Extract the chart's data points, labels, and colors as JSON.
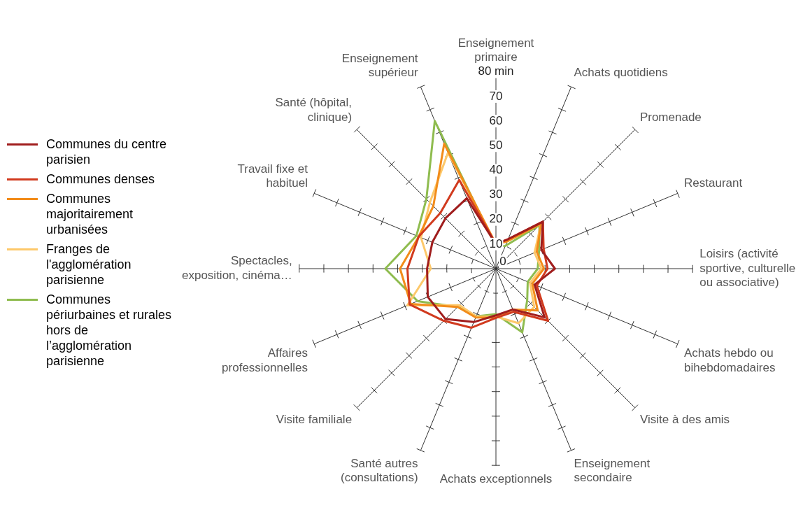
{
  "chart_data": {
    "type": "radar",
    "marker": "none",
    "legend": "left",
    "grid": true,
    "categories": [
      "Enseignement primaire",
      "Achats quotidiens",
      "Promenade",
      "Restaurant",
      "Loisirs (activité sportive, culturelle ou associative)",
      "Achats hebdo ou bihebdomadaires",
      "Visite à des amis",
      "Enseignement secondaire",
      "Achats exceptionnels",
      "Santé autres (consultations)",
      "Visite familiale",
      "Affaires professionnelles",
      "Spectacles, exposition, cinéma…",
      "Travail fixe et habituel",
      "Santé (hôpital, clinique)",
      "Enseignement supérieur"
    ],
    "ylim": [
      0,
      80
    ],
    "yticks": [
      0,
      10,
      20,
      30,
      40,
      50,
      60,
      70,
      {
        "value": 80,
        "label": "80 min"
      }
    ],
    "series": [
      {
        "name": "Communes du centre parisien",
        "color": "#a01d1d",
        "values": [
          10,
          13,
          27,
          20,
          24,
          17,
          28,
          18,
          19,
          23.5,
          29,
          30,
          28,
          28,
          29,
          31
        ]
      },
      {
        "name": "Communes denses",
        "color": "#d13a1e",
        "values": [
          10,
          13,
          27,
          21,
          21,
          18,
          30,
          19,
          20,
          26,
          30,
          38,
          36,
          34,
          32,
          39
        ]
      },
      {
        "name": "Communes majoritairement urbanisées",
        "color": "#f28c1a",
        "values": [
          10,
          12,
          26,
          18,
          19.5,
          16,
          24,
          18,
          20,
          21.5,
          22,
          37.5,
          39,
          34,
          36,
          55
        ]
      },
      {
        "name": "Franges de l'agglomération parisienne",
        "color": "#fdc86a",
        "values": [
          10,
          12,
          26,
          17,
          18.5,
          15,
          22,
          24,
          19.5,
          21,
          21,
          39,
          26.5,
          33,
          38,
          51
        ]
      },
      {
        "name": "Communes périurbaines et rurales hors de l’agglomération parisienne",
        "color": "#8fbc4f",
        "values": [
          9,
          10,
          25,
          19,
          17,
          14,
          18,
          28,
          18.5,
          21,
          22,
          34.5,
          45,
          35,
          40,
          65
        ]
      }
    ]
  }
}
